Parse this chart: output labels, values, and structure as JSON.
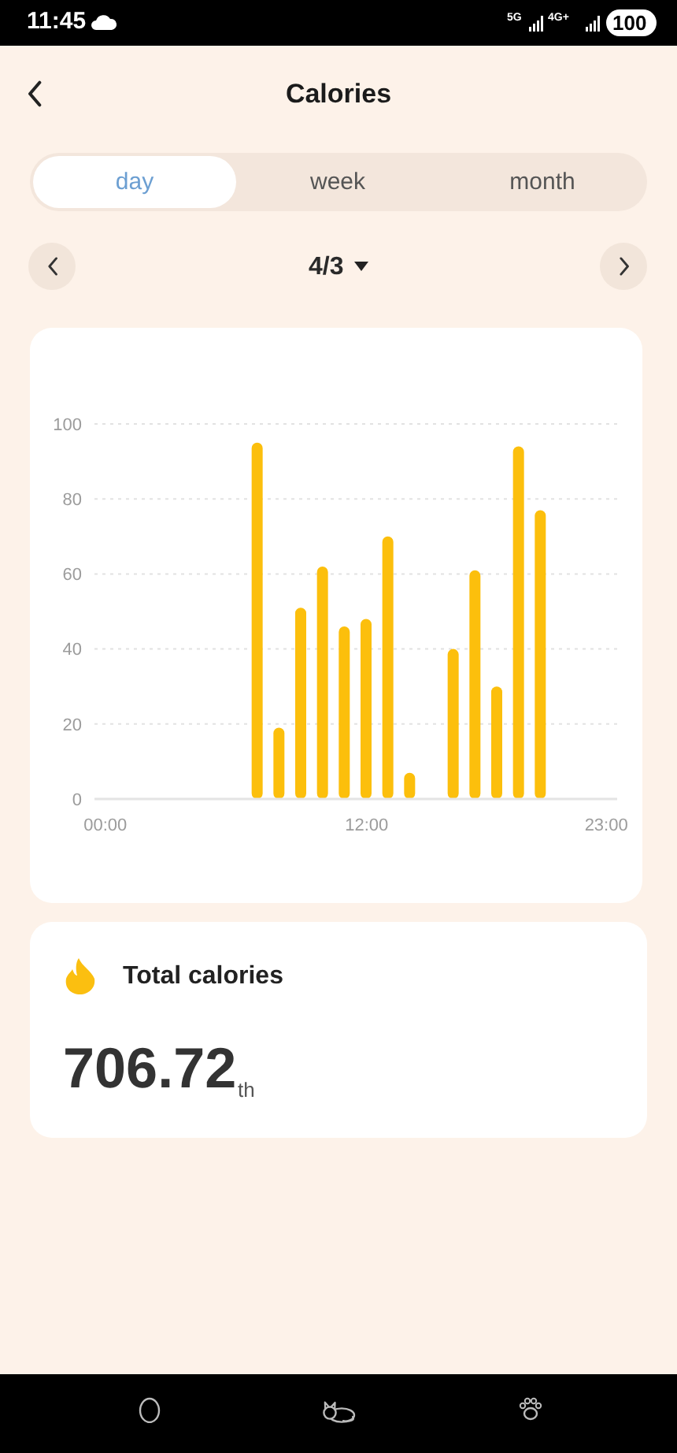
{
  "chart_data": {
    "type": "bar",
    "title": "Calories",
    "categories": [
      "00:00",
      null,
      null,
      null,
      null,
      null,
      null,
      null,
      null,
      null,
      null,
      null,
      "12:00",
      null,
      null,
      null,
      null,
      null,
      null,
      null,
      null,
      null,
      null,
      "23:00"
    ],
    "values": [
      null,
      null,
      null,
      null,
      null,
      null,
      null,
      95,
      19,
      51,
      62,
      46,
      48,
      70,
      7,
      null,
      40,
      61,
      30,
      94,
      77,
      null,
      null,
      null
    ],
    "color": "#fcbf0c",
    "ylim": [
      0,
      100
    ],
    "yticks": [
      0,
      20,
      40,
      60,
      80,
      100
    ],
    "grid": "y",
    "annotations": [
      "11:45",
      "5G",
      "4G+",
      "100",
      "day",
      "week",
      "month",
      "4/3",
      "Total calories",
      "706.72",
      "th"
    ]
  }
}
